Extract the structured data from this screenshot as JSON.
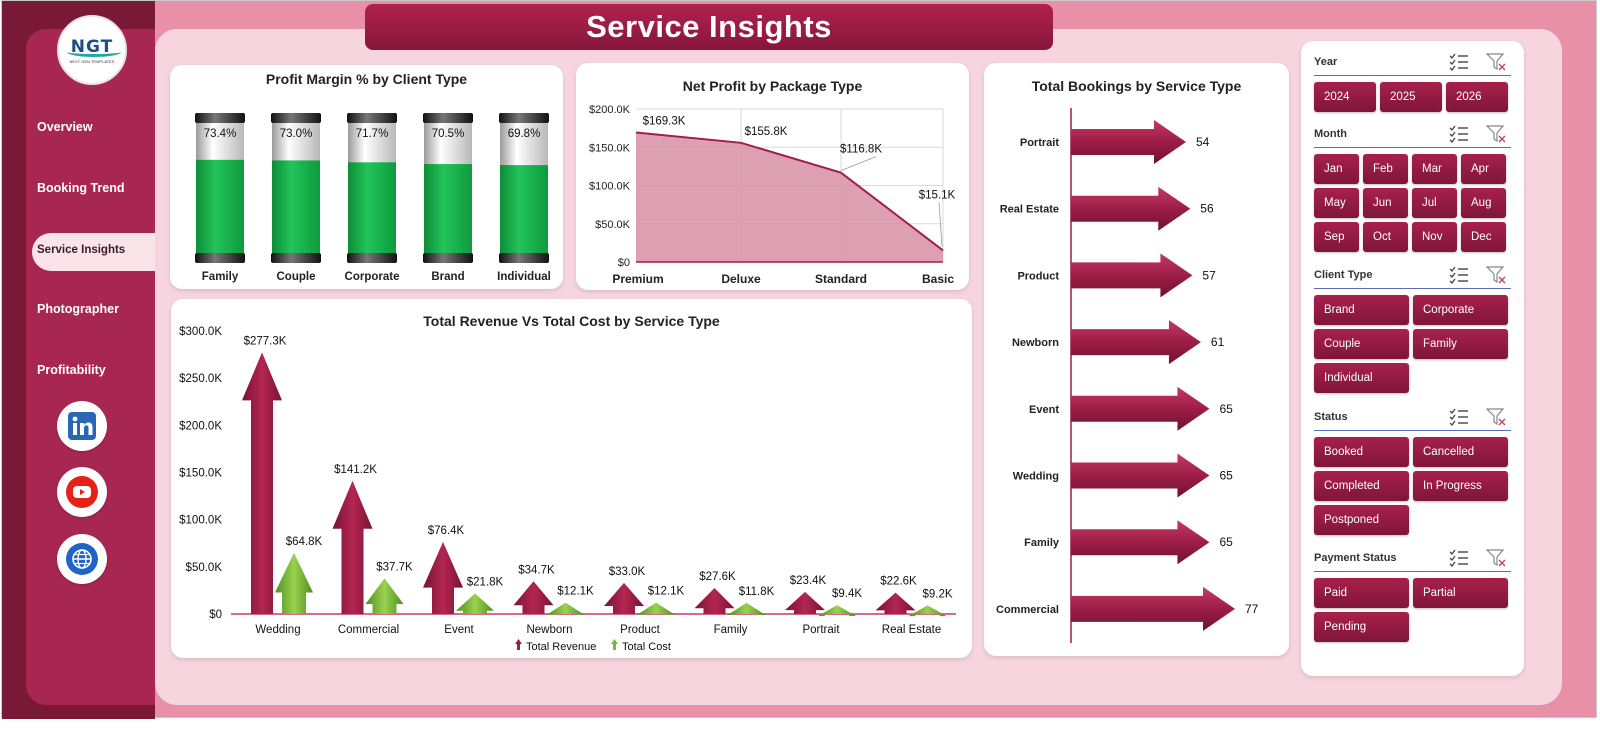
{
  "page_title": "Service Insights",
  "logo": {
    "text": "NGT",
    "subtext": "NEXT GEN TEMPLATES"
  },
  "nav": {
    "items": [
      "Overview",
      "Booking Trend",
      "Service Insights",
      "Photographer",
      "Profitability"
    ],
    "active": "Service Insights"
  },
  "social": [
    "linkedin-icon",
    "youtube-icon",
    "globe-icon"
  ],
  "colors": {
    "accent": "#a82652",
    "dark": "#7a1838",
    "revenue": "#9c1c44",
    "cost": "#79b83c",
    "tank_fill": "#1fae4c",
    "area": "#d78fa4"
  },
  "charts": {
    "profit_margin": {
      "title": "Profit Margin % by Client Type"
    },
    "net_profit": {
      "title": "Net Profit by Package Type"
    },
    "rev_cost": {
      "title": "Total Revenue Vs Total Cost by Service Type"
    },
    "bookings": {
      "title": "Total Bookings by Service Type"
    }
  },
  "chart_data": [
    {
      "id": "profit_margin",
      "type": "bar",
      "title": "Profit Margin % by Client Type",
      "categories": [
        "Family",
        "Couple",
        "Corporate",
        "Brand",
        "Individual"
      ],
      "values": [
        73.4,
        73.0,
        71.7,
        70.5,
        69.8
      ],
      "labels": [
        "73.4%",
        "73.0%",
        "71.7%",
        "70.5%",
        "69.8%"
      ],
      "ylim": [
        0,
        100
      ]
    },
    {
      "id": "net_profit",
      "type": "area",
      "title": "Net Profit by Package Type",
      "categories": [
        "Premium",
        "Deluxe",
        "Standard",
        "Basic"
      ],
      "values": [
        169.3,
        155.8,
        116.8,
        15.1
      ],
      "labels": [
        "$169.3K",
        "$155.8K",
        "$116.8K",
        "$15.1K"
      ],
      "ylim": [
        0,
        200
      ],
      "yticks": [
        "$0",
        "$50.0K",
        "$100.0K",
        "$150.0K",
        "$200.0K"
      ],
      "grid": true
    },
    {
      "id": "rev_cost",
      "type": "bar",
      "title": "Total Revenue Vs Total Cost by Service Type",
      "categories": [
        "Wedding",
        "Commercial",
        "Event",
        "Newborn",
        "Product",
        "Family",
        "Portrait",
        "Real Estate"
      ],
      "series": [
        {
          "name": "Total Revenue",
          "values": [
            277.3,
            141.2,
            76.4,
            34.7,
            33.0,
            27.6,
            23.4,
            22.6
          ],
          "labels": [
            "$277.3K",
            "$141.2K",
            "$76.4K",
            "$34.7K",
            "$33.0K",
            "$27.6K",
            "$23.4K",
            "$22.6K"
          ]
        },
        {
          "name": "Total Cost",
          "values": [
            64.8,
            37.7,
            21.8,
            12.1,
            12.1,
            11.8,
            9.4,
            9.2
          ],
          "labels": [
            "$64.8K",
            "$37.7K",
            "$21.8K",
            "$12.1K",
            "$12.1K",
            "$11.8K",
            "$9.4K",
            "$9.2K"
          ]
        }
      ],
      "ylim": [
        0,
        300
      ],
      "yticks": [
        "$0",
        "$50.0K",
        "$100.0K",
        "$150.0K",
        "$200.0K",
        "$250.0K",
        "$300.0K"
      ],
      "legend": "bottom"
    },
    {
      "id": "bookings",
      "type": "bar",
      "orientation": "horizontal",
      "title": "Total Bookings by Service Type",
      "categories": [
        "Portrait",
        "Real Estate",
        "Product",
        "Newborn",
        "Event",
        "Wedding",
        "Family",
        "Commercial"
      ],
      "values": [
        54,
        56,
        57,
        61,
        65,
        65,
        65,
        77
      ]
    }
  ],
  "filters": {
    "year": {
      "label": "Year",
      "options": [
        "2024",
        "2025",
        "2026"
      ]
    },
    "month": {
      "label": "Month",
      "options": [
        "Jan",
        "Feb",
        "Mar",
        "Apr",
        "May",
        "Jun",
        "Jul",
        "Aug",
        "Sep",
        "Oct",
        "Nov",
        "Dec"
      ]
    },
    "client_type": {
      "label": "Client Type",
      "options": [
        "Brand",
        "Corporate",
        "Couple",
        "Family",
        "Individual"
      ]
    },
    "status": {
      "label": "Status",
      "options": [
        "Booked",
        "Cancelled",
        "Completed",
        "In Progress",
        "Postponed"
      ]
    },
    "payment": {
      "label": "Payment Status",
      "options": [
        "Paid",
        "Partial",
        "Pending"
      ]
    }
  }
}
